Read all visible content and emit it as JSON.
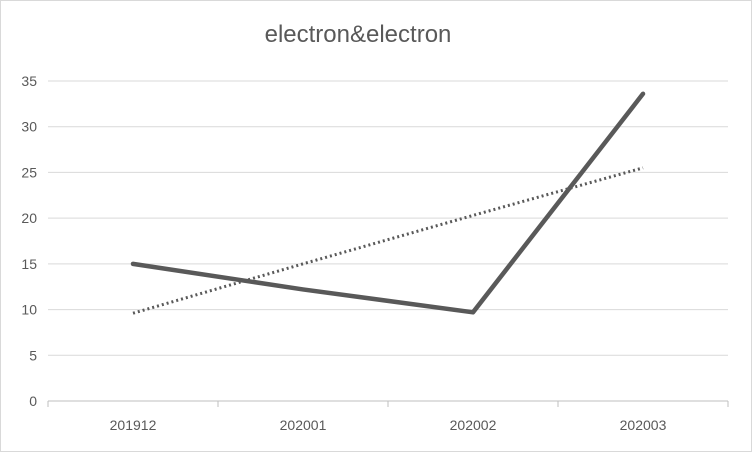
{
  "chart_data": {
    "type": "line",
    "title": "electron&electron",
    "categories": [
      "201912",
      "202001",
      "202002",
      "202003"
    ],
    "series": [
      {
        "values": [
          15,
          12.2,
          9.7,
          33.6
        ],
        "color": "#595959",
        "style": "solid"
      }
    ],
    "trendline": {
      "type": "linear",
      "values": [
        9.6,
        15.0,
        20.3,
        25.5
      ],
      "color": "#595959",
      "style": "dotted"
    },
    "ylim": [
      0,
      35
    ],
    "yticks": [
      0,
      5,
      10,
      15,
      20,
      25,
      30,
      35
    ],
    "xlabel": "",
    "ylabel": "",
    "grid": true,
    "legend": "none"
  }
}
